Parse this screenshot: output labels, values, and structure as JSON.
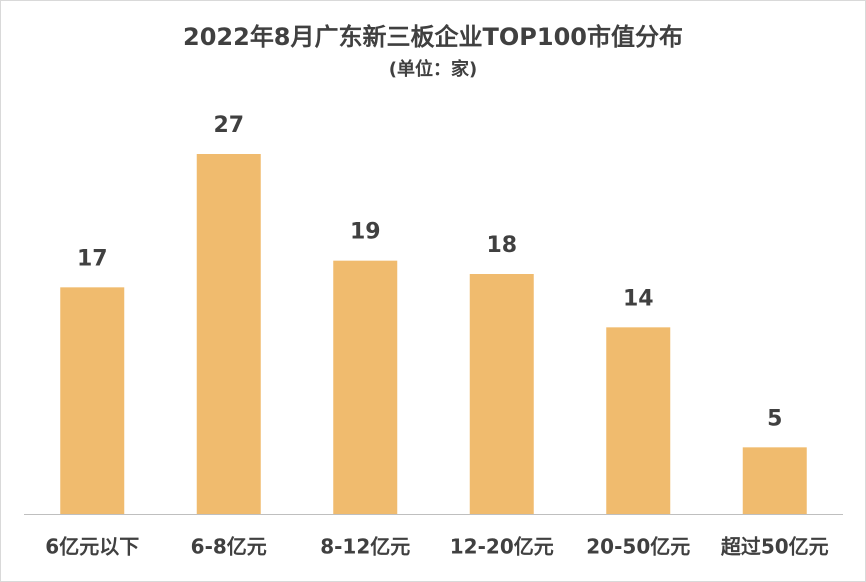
{
  "chart_data": {
    "type": "bar",
    "title": "2022年8月广东新三板企业TOP100市值分布",
    "subtitle": "(单位：家)",
    "categories": [
      "6亿元以下",
      "6-8亿元",
      "8-12亿元",
      "12-20亿元",
      "20-50亿元",
      "超过50亿元"
    ],
    "values": [
      17,
      27,
      19,
      18,
      14,
      5
    ],
    "color": "#f0bb6e",
    "ylim": [
      0,
      30
    ]
  }
}
